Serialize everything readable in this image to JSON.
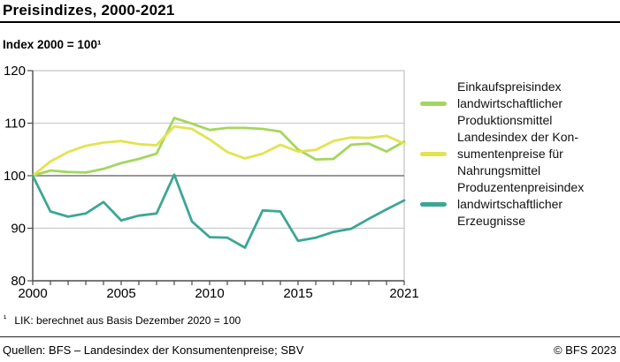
{
  "header": {
    "title": "Preisindizes, 2000-2021",
    "subtitle": "Index 2000 = 100¹"
  },
  "legend": {
    "items": [
      {
        "color": "#a4d65e",
        "lines": [
          "Einkaufspreisindex",
          "landwirtschaftlicher",
          "Produktionsmittel"
        ]
      },
      {
        "color": "#e1e44f",
        "lines": [
          "Landesindex der Kon-",
          "sumentenpreise für",
          "Nahrungsmittel"
        ]
      },
      {
        "color": "#3ca795",
        "lines": [
          "Produzentenpreisindex",
          "landwirtschaftlicher",
          "Erzeugnisse"
        ]
      }
    ]
  },
  "footnote": {
    "marker": "¹",
    "text": "LIK: berechnet aus Basis Dezember 2020 = 100"
  },
  "footer": {
    "source": "Quellen: BFS – Landesindex der Konsumentenpreise; SBV",
    "copyright": "© BFS 2023"
  },
  "chart_data": {
    "type": "line",
    "title": "Preisindizes, 2000-2021",
    "subtitle": "Index 2000 = 100 (base year)",
    "x": [
      2000,
      2001,
      2002,
      2003,
      2004,
      2005,
      2006,
      2007,
      2008,
      2009,
      2010,
      2011,
      2012,
      2013,
      2014,
      2015,
      2016,
      2017,
      2018,
      2019,
      2020,
      2021
    ],
    "series": [
      {
        "name": "Einkaufspreisindex landwirtschaftlicher Produktionsmittel",
        "color": "#a4d65e",
        "values": [
          100,
          101.0,
          100.7,
          100.6,
          101.3,
          102.4,
          103.2,
          104.2,
          111.0,
          109.9,
          108.7,
          109.1,
          109.1,
          108.9,
          108.4,
          105.0,
          103.1,
          103.2,
          105.9,
          106.1,
          104.6,
          106.5
        ]
      },
      {
        "name": "Landesindex der Konsumentenpreise für Nahrungsmittel",
        "color": "#e1e44f",
        "values": [
          100,
          102.7,
          104.5,
          105.7,
          106.3,
          106.6,
          106.0,
          105.8,
          109.4,
          108.9,
          106.9,
          104.5,
          103.3,
          104.2,
          105.9,
          104.6,
          104.9,
          106.6,
          107.3,
          107.2,
          107.6,
          106.1
        ]
      },
      {
        "name": "Produzentenpreisindex landwirtschaftlicher Erzeugnisse",
        "color": "#3ca795",
        "values": [
          100,
          93.2,
          92.2,
          92.8,
          95.0,
          91.5,
          92.4,
          92.8,
          100.2,
          91.3,
          88.3,
          88.2,
          86.3,
          93.4,
          93.2,
          87.6,
          88.2,
          89.3,
          89.9,
          91.8,
          93.6,
          95.3
        ]
      }
    ],
    "xlim": [
      2000,
      2021
    ],
    "ylim": [
      80,
      120
    ],
    "yticks": [
      80,
      90,
      100,
      110,
      120
    ],
    "xticks_minor_every_year": true,
    "xticks_labeled": [
      2000,
      2005,
      2010,
      2015,
      2021
    ],
    "grid": "horizontal gridlines at 90 and 110; emphasized darker line at 100",
    "legend_position": "right"
  }
}
